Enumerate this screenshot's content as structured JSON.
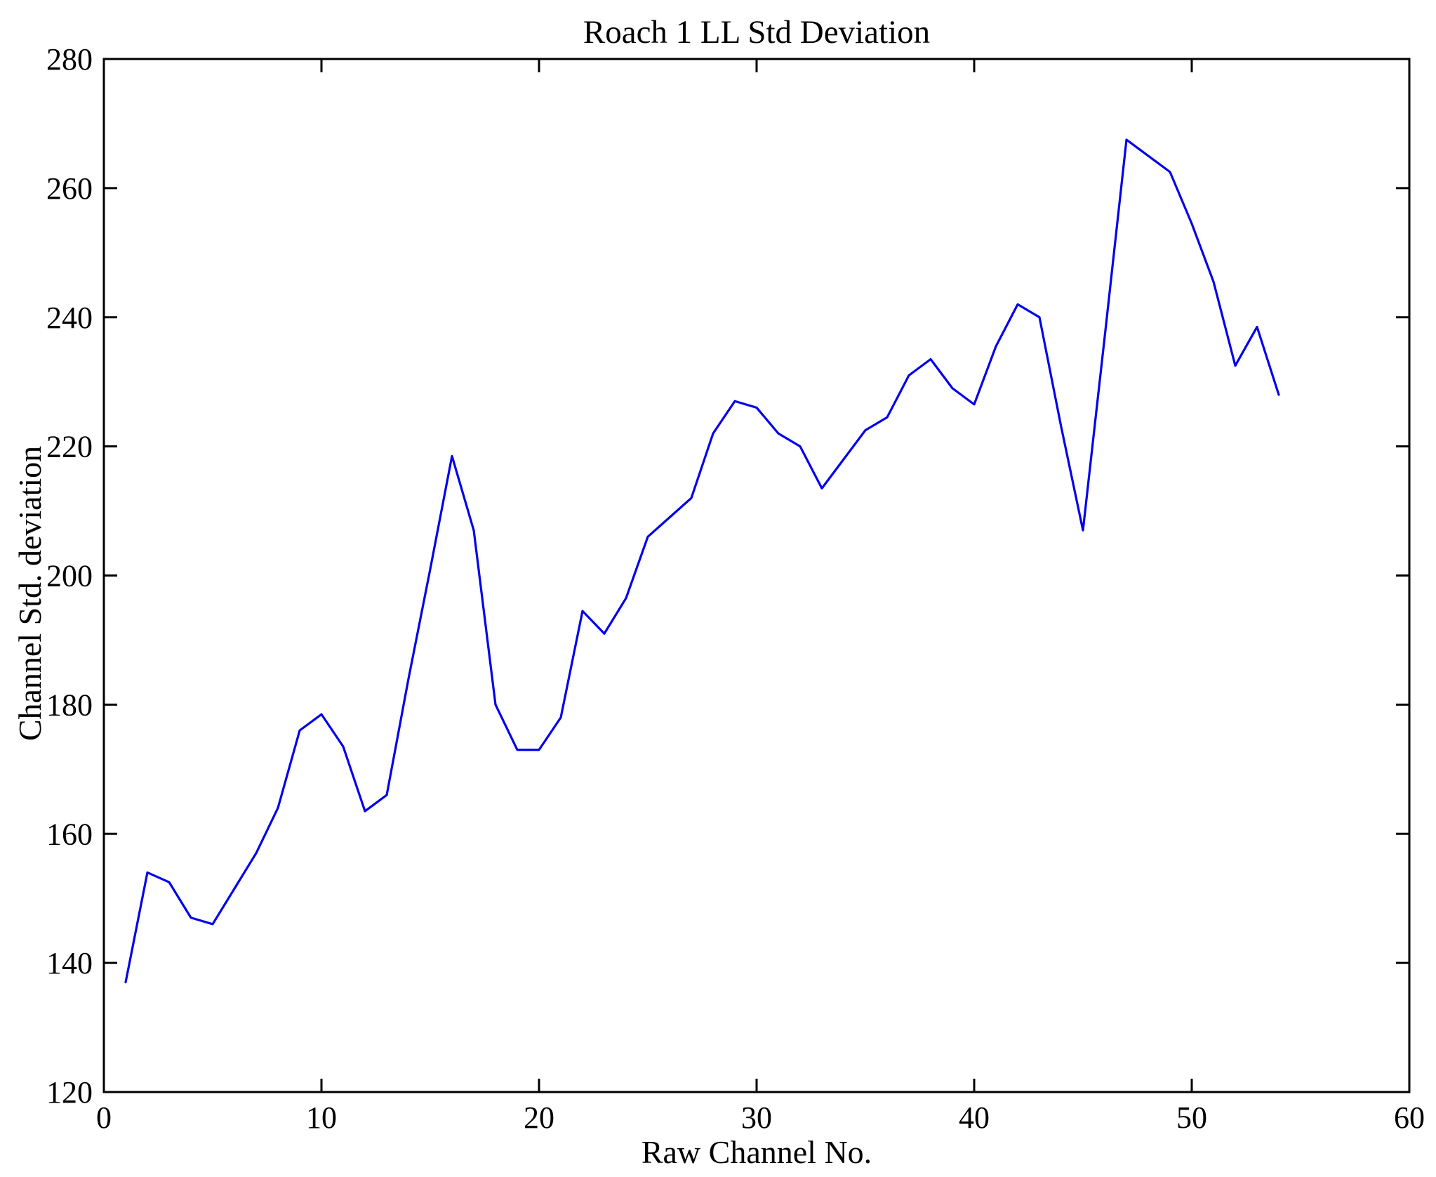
{
  "figure": {
    "background": "#ffffff",
    "axis_color": "#000000"
  },
  "chart_data": {
    "type": "line",
    "title": "Roach 1 LL Std Deviation",
    "xlabel": "Raw Channel No.",
    "ylabel": "Channel Std. deviation",
    "x": [
      1,
      2,
      3,
      4,
      5,
      6,
      7,
      8,
      9,
      10,
      11,
      12,
      13,
      14,
      15,
      16,
      17,
      18,
      19,
      20,
      21,
      22,
      23,
      24,
      25,
      26,
      27,
      28,
      29,
      30,
      31,
      32,
      33,
      34,
      35,
      36,
      37,
      38,
      39,
      40,
      41,
      42,
      43,
      44,
      45,
      46,
      47,
      48,
      49,
      50,
      51,
      52,
      53,
      54
    ],
    "values": [
      137,
      154,
      152.5,
      147,
      146,
      151.5,
      157,
      164,
      176,
      178.5,
      173.5,
      163.5,
      166,
      184,
      201,
      218.5,
      207,
      180,
      173,
      173,
      178,
      194.5,
      191,
      196.5,
      206,
      209,
      212,
      222,
      227,
      226,
      222,
      220,
      213.5,
      218,
      222.5,
      224.5,
      231,
      233.5,
      229,
      226.5,
      235.5,
      242,
      240,
      223,
      207,
      237,
      267.5,
      265,
      262.5,
      254.5,
      245.5,
      232.5,
      238.5,
      228
    ],
    "xlim": [
      0,
      60
    ],
    "ylim": [
      120,
      280
    ],
    "xticks": [
      0,
      10,
      20,
      30,
      40,
      50,
      60
    ],
    "yticks": [
      120,
      140,
      160,
      180,
      200,
      220,
      240,
      260,
      280
    ],
    "grid": false,
    "legend": null,
    "line_color": "#0000EE",
    "box": true,
    "ticks_direction": "in"
  }
}
